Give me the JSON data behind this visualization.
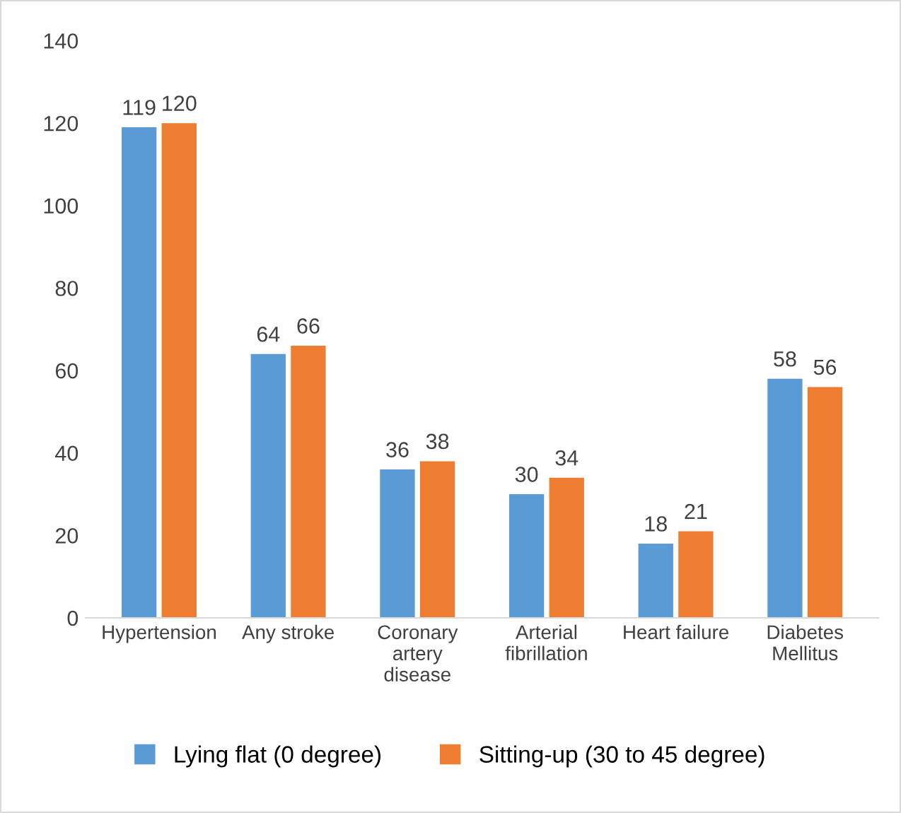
{
  "chart_data": {
    "type": "bar",
    "categories": [
      "Hypertension",
      "Any stroke",
      "Coronary\nartery\ndisease",
      "Arterial\nfibrillation",
      "Heart failure",
      "Diabetes\nMellitus"
    ],
    "series": [
      {
        "name": "Lying flat (0 degree)",
        "color": "#5b9bd5",
        "values": [
          119,
          64,
          36,
          30,
          18,
          58
        ]
      },
      {
        "name": "Sitting-up (30 to 45 degree)",
        "color": "#ed7d31",
        "values": [
          120,
          66,
          38,
          34,
          21,
          56
        ]
      }
    ],
    "ylim": [
      0,
      140
    ],
    "yticks": [
      0,
      20,
      40,
      60,
      80,
      100,
      120,
      140
    ],
    "data_labels": true,
    "legend": "bottom",
    "grid": false
  }
}
